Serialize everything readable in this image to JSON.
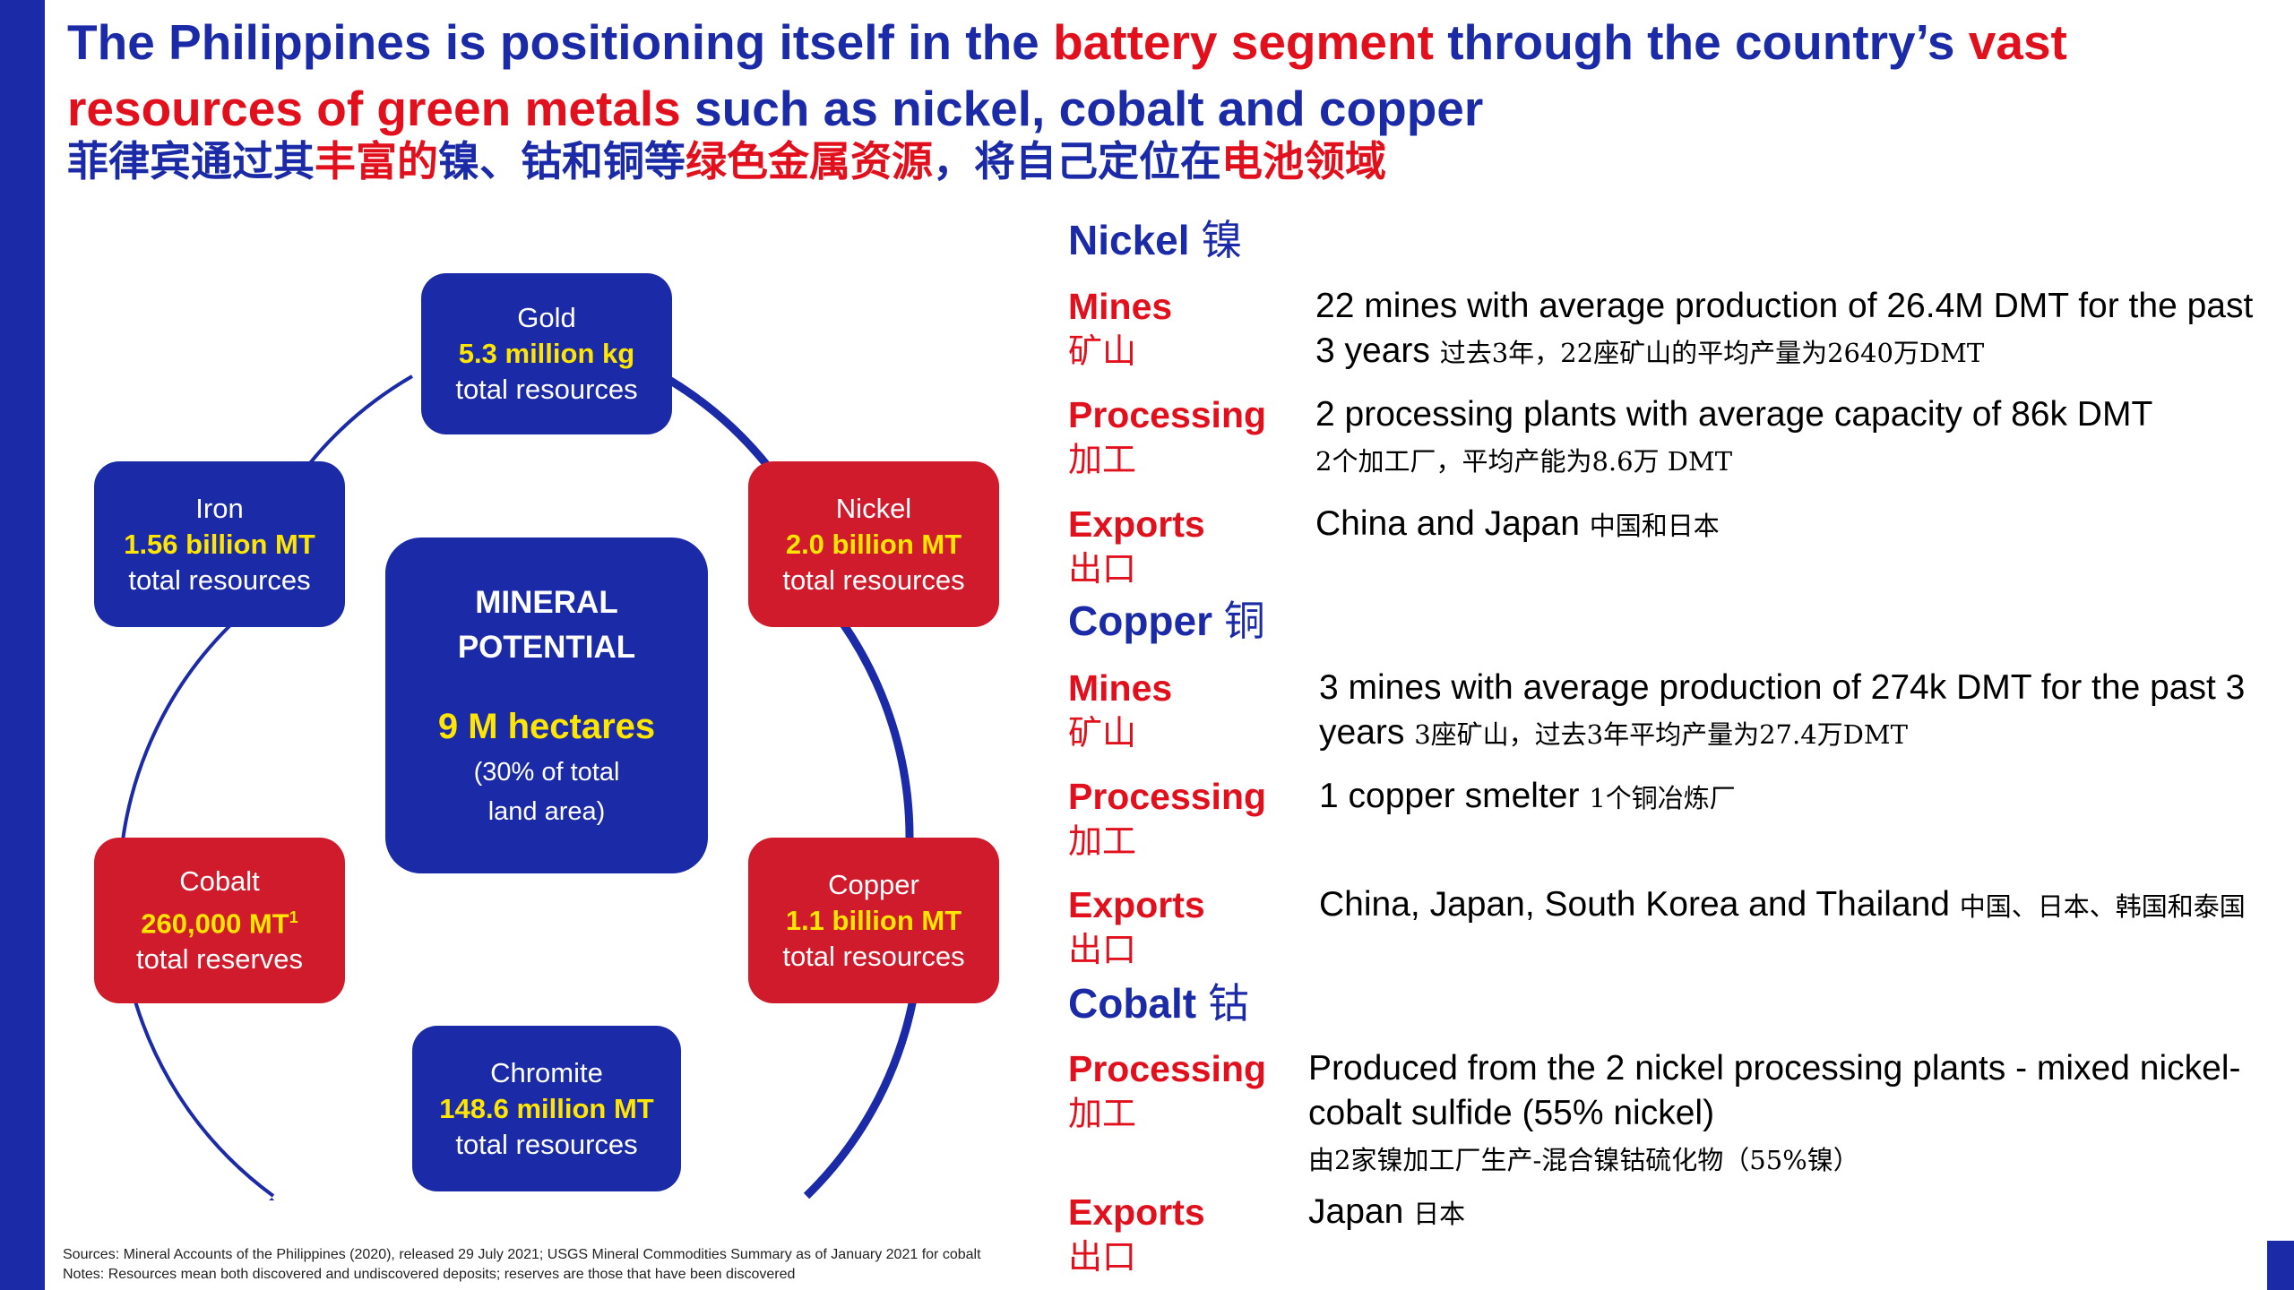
{
  "header": {
    "title_1": "The Philippines is positioning itself in the ",
    "title_hl1": "battery segment",
    "title_2": " through the country’s ",
    "title_hl2": "vast resources of green metals",
    "title_3": " such as nickel, cobalt and copper",
    "subtitle_1": "菲律宾通过其",
    "subtitle_hl1": "丰富的",
    "subtitle_2": "镍、钴和铜等",
    "subtitle_hl2": "绿色金属资源",
    "subtitle_3": "，将自己定位在",
    "subtitle_hl3": "电池领域"
  },
  "diagram": {
    "center": {
      "title_1": "MINERAL",
      "title_2": "POTENTIAL",
      "value": "9 M hectares",
      "note_1": "(30% of total",
      "note_2": "land area)"
    },
    "gold": {
      "name": "Gold",
      "value": "5.3 million kg",
      "unit": "total resources"
    },
    "iron": {
      "name": "Iron",
      "value": "1.56 billion MT",
      "unit": "total resources"
    },
    "nickel": {
      "name": "Nickel",
      "value": "2.0 billion MT",
      "unit": "total resources"
    },
    "cobalt": {
      "name": "Cobalt",
      "value": "260,000 MT",
      "sup": "1",
      "unit": "total reserves"
    },
    "copper": {
      "name": "Copper",
      "value": "1.1 billion MT",
      "unit": "total resources"
    },
    "chromite": {
      "name": "Chromite",
      "value": "148.6 million MT",
      "unit": "total resources"
    }
  },
  "nickel": {
    "heading": "Nickel ",
    "heading_zh": "镍",
    "mines": {
      "label": "Mines",
      "label_zh": "矿山",
      "text": "22 mines with average production of 26.4M DMT for the past 3 years ",
      "text_zh": "过去3年，22座矿山的平均产量为2640万DMT"
    },
    "processing": {
      "label": "Processing",
      "label_zh": "加工",
      "text": "2 processing plants with average capacity of 86k DMT",
      "text_zh": "2个加工厂，平均产能为8.6万 DMT"
    },
    "exports": {
      "label": "Exports",
      "label_zh": "出口",
      "text": "China and Japan ",
      "text_zh": "中国和日本"
    }
  },
  "copper": {
    "heading": "Copper ",
    "heading_zh": "铜",
    "mines": {
      "label": "Mines",
      "label_zh": "矿山",
      "text": "3 mines with average production of 274k DMT for the past 3 years ",
      "text_zh": "3座矿山，过去3年平均产量为27.4万DMT"
    },
    "processing": {
      "label": "Processing",
      "label_zh": "加工",
      "text": "1 copper smelter ",
      "text_zh": "1个铜冶炼厂"
    },
    "exports": {
      "label": "Exports",
      "label_zh": "出口",
      "text": "China, Japan, South Korea and Thailand ",
      "text_zh": "中国、日本、韩国和泰国"
    }
  },
  "cobalt": {
    "heading": "Cobalt ",
    "heading_zh": "钴",
    "processing": {
      "label": "Processing",
      "label_zh": "加工",
      "text": "Produced from  the 2 nickel processing plants - mixed nickel-cobalt sulfide (55% nickel) ",
      "text_zh": "由2家镍加工厂生产-混合镍钴硫化物（55%镍）"
    },
    "exports": {
      "label": "Exports",
      "label_zh": "出口",
      "text": "Japan ",
      "text_zh": "日本"
    }
  },
  "footer": {
    "sources": "Sources: Mineral Accounts of the Philippines (2020), released 29 July 2021; USGS Mineral Commodities Summary as of January 2021 for cobalt",
    "notes": "Notes: Resources mean both discovered and undiscovered deposits; reserves are those that have been discovered"
  },
  "colors": {
    "brand_blue": "#1b2aa6",
    "accent_red": "#cf1b2b",
    "value_yellow": "#ffe600"
  }
}
